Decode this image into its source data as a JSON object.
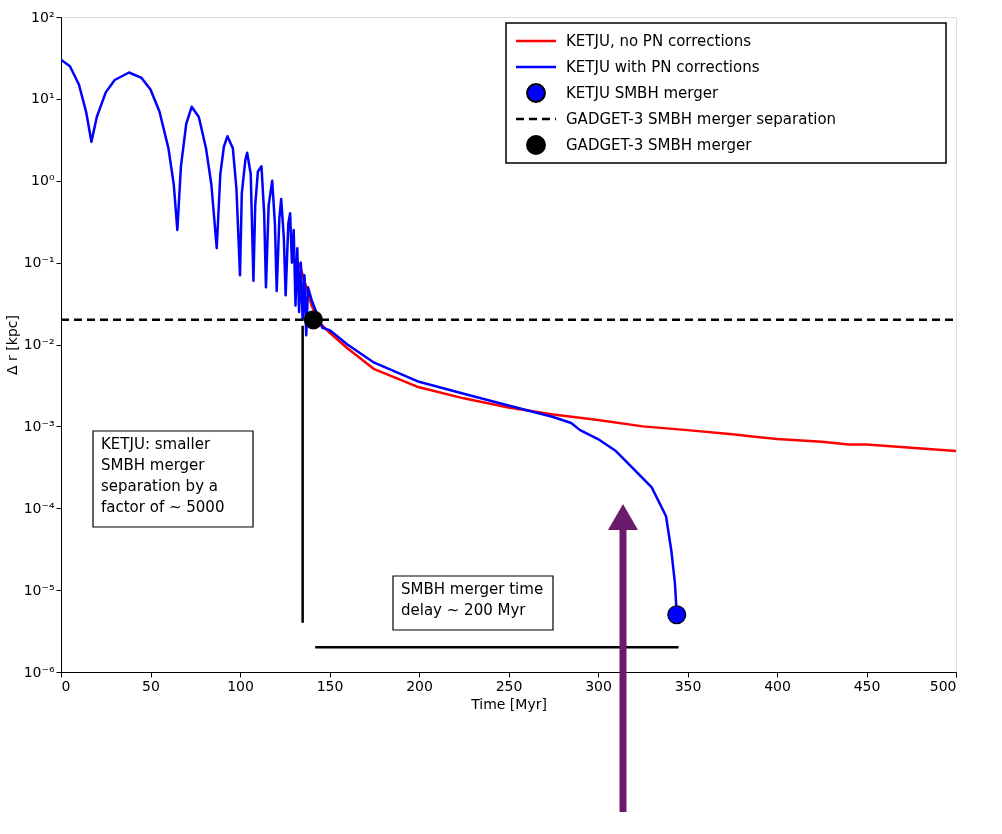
{
  "chart_data": {
    "type": "line",
    "xlabel": "Time [Myr]",
    "ylabel": "Δ r [kpc]",
    "log": "y",
    "grid": false,
    "legend": "top right",
    "xlim": [
      0,
      500
    ],
    "xticks": [
      0,
      50,
      100,
      150,
      200,
      250,
      300,
      350,
      400,
      450,
      500
    ],
    "ylim": [
      1e-06,
      100
    ],
    "yticks": [
      {
        "value": 1e-06,
        "label": "10⁻⁶"
      },
      {
        "value": 1e-05,
        "label": "10⁻⁵"
      },
      {
        "value": 0.0001,
        "label": "10⁻⁴"
      },
      {
        "value": 0.001,
        "label": "10⁻³"
      },
      {
        "value": 0.01,
        "label": "10⁻²"
      },
      {
        "value": 0.1,
        "label": "10⁻¹"
      },
      {
        "value": 1,
        "label": "10⁰"
      },
      {
        "value": 10,
        "label": "10¹"
      },
      {
        "value": 100,
        "label": "10²"
      }
    ],
    "series": [
      {
        "name": "KETJU,  no PN corrections",
        "color": "#ff0000",
        "line_style": "solid",
        "x": [
          133,
          136,
          140,
          145,
          150,
          160,
          175,
          200,
          225,
          250,
          275,
          300,
          325,
          350,
          375,
          400,
          425,
          440,
          445,
          450,
          475,
          500
        ],
        "values": [
          0.1,
          0.06,
          0.03,
          0.018,
          0.014,
          0.009,
          0.005,
          0.003,
          0.0022,
          0.0017,
          0.0014,
          0.0012,
          0.001,
          0.0009,
          0.0008,
          0.0007,
          0.00065,
          0.0006,
          0.0006,
          0.0006,
          0.00055,
          0.0005
        ]
      },
      {
        "name": "KETJU with PN corrections",
        "color": "#0000ff",
        "line_style": "solid",
        "x": [
          0,
          5,
          10,
          14,
          17,
          20,
          25,
          30,
          38,
          45,
          50,
          55,
          60,
          63,
          65,
          67,
          70,
          73,
          77,
          81,
          84,
          87,
          89,
          91,
          93,
          96,
          98,
          100,
          101,
          103,
          104,
          106,
          107.5,
          108.5,
          110,
          112,
          113.5,
          114.5,
          116,
          118,
          119.5,
          120.5,
          122,
          123,
          124.5,
          125.5,
          127,
          128,
          129,
          130,
          131,
          132,
          133,
          134,
          135,
          136,
          137,
          138,
          140,
          146,
          150,
          160,
          175,
          200,
          225,
          250,
          275,
          285,
          290,
          300,
          310,
          320,
          330,
          338,
          341,
          343,
          344
        ],
        "values": [
          30,
          25,
          15,
          7,
          3,
          6,
          12,
          17,
          21,
          18,
          13,
          7,
          2.5,
          0.9,
          0.25,
          1.5,
          5,
          8,
          6,
          2.5,
          0.9,
          0.15,
          1.2,
          2.6,
          3.5,
          2.5,
          0.8,
          0.07,
          0.7,
          1.8,
          2.2,
          1.2,
          0.06,
          0.5,
          1.3,
          1.5,
          0.4,
          0.05,
          0.5,
          1.0,
          0.3,
          0.045,
          0.35,
          0.6,
          0.2,
          0.04,
          0.3,
          0.4,
          0.1,
          0.25,
          0.03,
          0.15,
          0.025,
          0.1,
          0.02,
          0.07,
          0.013,
          0.05,
          0.035,
          0.016,
          0.015,
          0.01,
          0.006,
          0.0035,
          0.0025,
          0.0018,
          0.0013,
          0.0011,
          0.0009,
          0.0007,
          0.0005,
          0.0003,
          0.00018,
          8e-05,
          3e-05,
          1.2e-05,
          5e-06
        ]
      },
      {
        "name": "KETJU SMBH merger",
        "color": "#0000ff",
        "type": "scatter",
        "marker": "circle",
        "x": [
          344
        ],
        "values": [
          5e-06
        ]
      },
      {
        "name": "GADGET-3 SMBH merger separation",
        "color": "#000000",
        "line_style": "dashed",
        "x": [
          0,
          500
        ],
        "values": [
          0.02,
          0.02
        ]
      },
      {
        "name": "GADGET-3 SMBH merger",
        "color": "#000000",
        "type": "scatter",
        "marker": "circle",
        "x": [
          141
        ],
        "values": [
          0.02
        ]
      },
      {
        "color": "#000000",
        "line_style": "solid",
        "x": [
          135,
          135
        ],
        "values": [
          0.017,
          4e-06
        ]
      },
      {
        "color": "#000000",
        "line_style": "solid",
        "x": [
          142,
          345
        ],
        "values": [
          2e-06,
          2e-06
        ]
      }
    ],
    "annotations": [
      "KETJU: smaller\nSMBH merger\nseparation by a\nfactor of ~ 5000",
      "SMBH merger time\ndelay ~ 200 Myr"
    ]
  }
}
